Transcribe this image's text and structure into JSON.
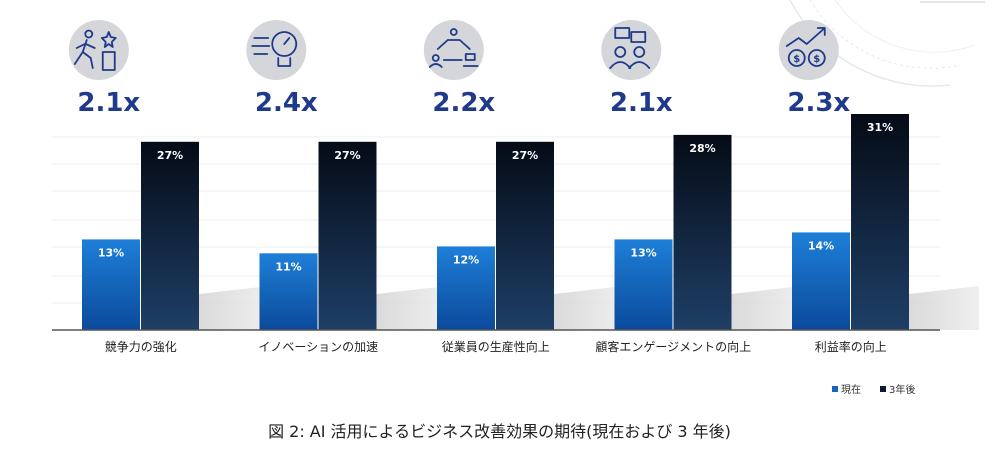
{
  "chart_data": {
    "type": "bar",
    "categories": [
      "競争力の強化",
      "イノベーションの加速",
      "従業員の生産性向上",
      "顧客エンゲージメントの向上",
      "利益率の向上"
    ],
    "series": [
      {
        "name": "現在",
        "values": [
          13,
          11,
          12,
          13,
          14
        ],
        "labels": [
          "13%",
          "11%",
          "12%",
          "13%",
          "14%"
        ],
        "color": "#1565c0"
      },
      {
        "name": "3年後",
        "values": [
          27,
          27,
          27,
          28,
          31
        ],
        "labels": [
          "27%",
          "27%",
          "27%",
          "28%",
          "31%"
        ],
        "color": "#0b1a2e"
      }
    ],
    "multipliers": [
      "2.1x",
      "2.4x",
      "2.2x",
      "2.1x",
      "2.3x"
    ],
    "icons": [
      "runner-trophy-icon",
      "lightbulb-speed-icon",
      "people-network-icon",
      "customer-chat-icon",
      "money-growth-icon"
    ],
    "ylim": [
      0,
      32
    ],
    "grid": true,
    "legend_position": "bottom-right",
    "title": "",
    "xlabel": "",
    "ylabel": ""
  },
  "caption": "図 2: AI 活用によるビジネス改善効果の期待(現在および 3 年後)"
}
